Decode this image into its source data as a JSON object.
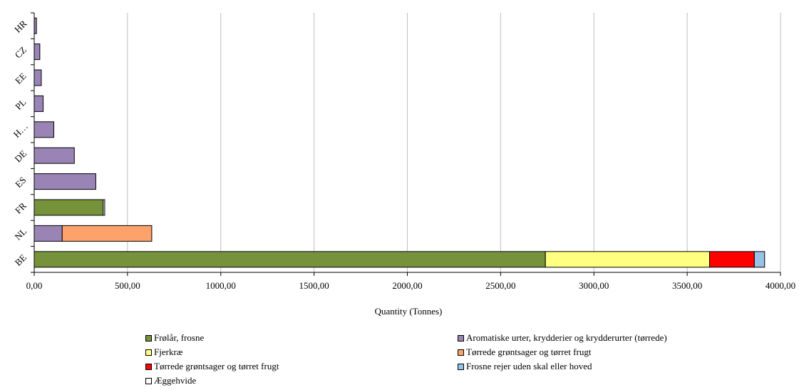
{
  "chart_data": {
    "type": "bar",
    "orientation": "horizontal",
    "stacked": true,
    "categories": [
      "BE",
      "NL",
      "FR",
      "ES",
      "DE",
      "H…",
      "PL",
      "EE",
      "CZ",
      "HR"
    ],
    "xlabel": "Quantity (Tonnes)",
    "xlim": [
      0,
      4000
    ],
    "xticks": [
      "0,00",
      "500,00",
      "1000,00",
      "1500,00",
      "2000,00",
      "2500,00",
      "3000,00",
      "3500,00",
      "4000,00"
    ],
    "grid": "vertical",
    "legend_position": "bottom",
    "series": [
      {
        "name": "Frølår, frosne",
        "color": "#76933c",
        "values": [
          2740,
          0,
          370,
          0,
          0,
          0,
          0,
          0,
          0,
          0
        ]
      },
      {
        "name": "Aromatiske urter, krydderier og krydderurter (tørrede)",
        "color": "#9a84b6",
        "values": [
          0,
          150,
          0,
          330,
          215,
          105,
          48,
          38,
          30,
          12
        ]
      },
      {
        "name": "Fjerkræ",
        "color": "#ffff80",
        "values": [
          880,
          0,
          0,
          0,
          0,
          0,
          0,
          0,
          0,
          0
        ]
      },
      {
        "name": "Tørrede grøntsager og tørret frugt",
        "color": "#fca26a",
        "values": [
          0,
          480,
          0,
          0,
          0,
          0,
          0,
          0,
          0,
          0
        ]
      },
      {
        "name": "Tørrede grøntsager og tørret frugt",
        "color": "#ff0000",
        "values": [
          240,
          0,
          0,
          0,
          0,
          0,
          0,
          0,
          0,
          0
        ]
      },
      {
        "name": "Frosne rejer uden skal eller hoved",
        "color": "#99c2e8",
        "values": [
          55,
          0,
          0,
          0,
          0,
          0,
          0,
          0,
          0,
          0
        ]
      },
      {
        "name": "Æggehvide",
        "color": "#ffffff",
        "values": [
          0,
          0,
          8,
          0,
          0,
          0,
          0,
          0,
          0,
          0
        ]
      }
    ]
  }
}
